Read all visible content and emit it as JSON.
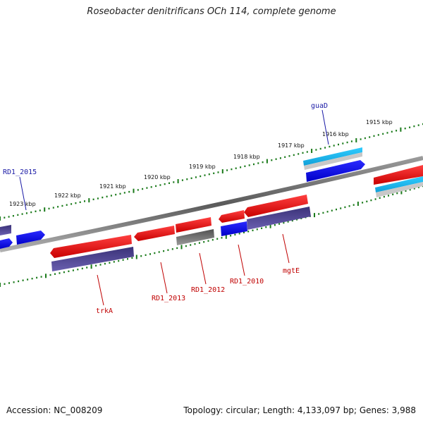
{
  "title": "Roseobacter denitrificans OCh 114, complete genome",
  "accession": "Accession: NC_008209",
  "topology": "Topology: circular; Length: 4,133,097 bp; Genes: 3,988",
  "kbp_labels": [
    "1915 kbp",
    "1916 kbp",
    "1917 kbp",
    "1918 kbp",
    "1919 kbp",
    "1920 kbp",
    "1921 kbp",
    "1922 kbp",
    "1923 kbp"
  ],
  "gene_labels": {
    "guaD": "guaD",
    "RD1_2015": "RD1_2015",
    "trkA": "trkA",
    "RD1_2013": "RD1_2013",
    "RD1_2012": "RD1_2012",
    "RD1_2010": "RD1_2010",
    "mgtE": "mgtE"
  },
  "colors": {
    "forward_red": "#e00000",
    "reverse_blue": "#0000e0",
    "rna_cyan": "#20c0f0",
    "purple": "#4a3f8a",
    "gray": "#606060",
    "tick_green": "#1a7a1a"
  }
}
